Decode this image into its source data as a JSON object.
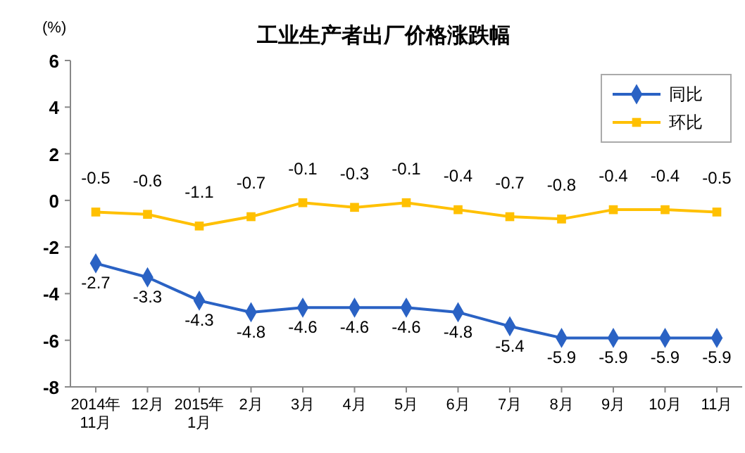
{
  "chart_data": {
    "type": "line",
    "title": "工业生产者出厂价格涨跌幅",
    "ylabel": "(%)",
    "categories": [
      "2014年\n11月",
      "12月",
      "2015年\n1月",
      "2月",
      "3月",
      "4月",
      "5月",
      "6月",
      "7月",
      "8月",
      "9月",
      "10月",
      "11月"
    ],
    "series": [
      {
        "name": "同比",
        "color": "#2a62c4",
        "marker": "diamond",
        "values": [
          -2.7,
          -3.3,
          -4.3,
          -4.8,
          -4.6,
          -4.6,
          -4.6,
          -4.8,
          -5.4,
          -5.9,
          -5.9,
          -5.9,
          -5.9
        ]
      },
      {
        "name": "环比",
        "color": "#ffc000",
        "marker": "square",
        "values": [
          -0.5,
          -0.6,
          -1.1,
          -0.7,
          -0.1,
          -0.3,
          -0.1,
          -0.4,
          -0.7,
          -0.8,
          -0.4,
          -0.4,
          -0.5
        ]
      }
    ],
    "ylim": [
      -8,
      6
    ],
    "yticks": [
      -8,
      -6,
      -4,
      -2,
      0,
      2,
      4,
      6
    ],
    "data_labels": true,
    "legend": "top right",
    "line_style": "solid"
  }
}
